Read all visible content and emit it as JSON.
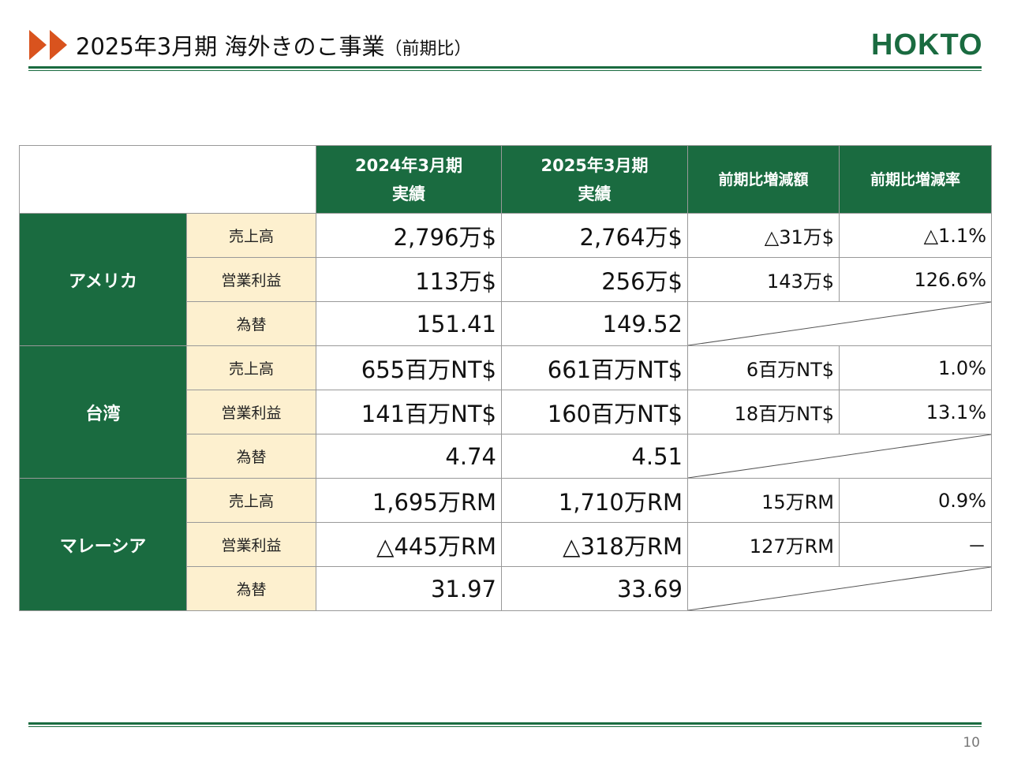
{
  "header": {
    "title": "2025年3月期 海外きのこ事業",
    "subtitle": "（前期比）",
    "logo": "HOKTO"
  },
  "table": {
    "columns": [
      "2024年3月期\n実績",
      "2025年3月期\n実績",
      "前期比増減額",
      "前期比増減率"
    ],
    "groups": [
      {
        "name": "アメリカ",
        "rows": [
          {
            "label": "売上高",
            "cells": [
              "2,796万$",
              "2,764万$",
              "△31万$",
              "△1.1%"
            ]
          },
          {
            "label": "営業利益",
            "cells": [
              "113万$",
              "256万$",
              "143万$",
              "126.6%"
            ]
          },
          {
            "label": "為替",
            "cells": [
              "151.41",
              "149.52"
            ]
          }
        ]
      },
      {
        "name": "台湾",
        "rows": [
          {
            "label": "売上高",
            "cells": [
              "655百万NT$",
              "661百万NT$",
              "6百万NT$",
              "1.0%"
            ]
          },
          {
            "label": "営業利益",
            "cells": [
              "141百万NT$",
              "160百万NT$",
              "18百万NT$",
              "13.1%"
            ]
          },
          {
            "label": "為替",
            "cells": [
              "4.74",
              "4.51"
            ]
          }
        ]
      },
      {
        "name": "マレーシア",
        "rows": [
          {
            "label": "売上高",
            "cells": [
              "1,695万RM",
              "1,710万RM",
              "15万RM",
              "0.9%"
            ]
          },
          {
            "label": "営業利益",
            "cells": [
              "△445万RM",
              "△318万RM",
              "127万RM",
              "－"
            ]
          },
          {
            "label": "為替",
            "cells": [
              "31.97",
              "33.69"
            ]
          }
        ]
      }
    ]
  },
  "page_number": "10"
}
